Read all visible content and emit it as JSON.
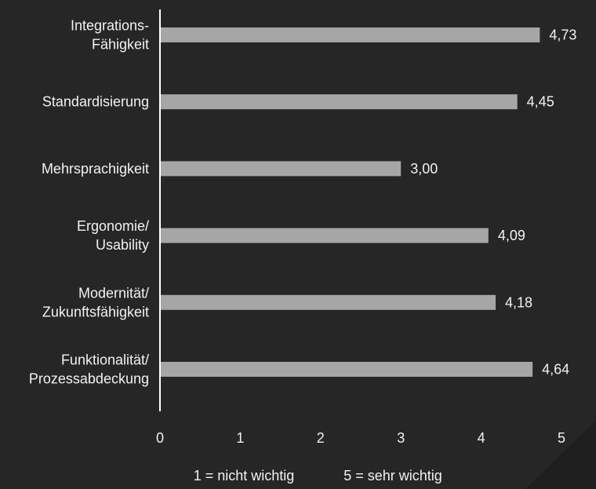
{
  "colors": {
    "background": "#262626",
    "corner_shade": "#1f1f1f",
    "bar": "#a6a6a6",
    "axis": "#ffffff",
    "text": "#f2f2f2"
  },
  "chart_data": {
    "type": "bar",
    "orientation": "horizontal",
    "categories": [
      [
        "Integrations-",
        "Fähigkeit"
      ],
      [
        "Standardisierung"
      ],
      [
        "Mehrsprachigkeit"
      ],
      [
        "Ergonomie/",
        "Usability"
      ],
      [
        "Modernität/",
        "Zukunftsfähigkeit"
      ],
      [
        "Funktionalität/",
        "Prozessabdeckung"
      ]
    ],
    "values": [
      4.73,
      4.45,
      3.0,
      4.09,
      4.18,
      4.64
    ],
    "value_labels": [
      "4,73",
      "4,45",
      "3,00",
      "4,09",
      "4,18",
      "4,64"
    ],
    "xlim": [
      0,
      5
    ],
    "xticks": [
      "0",
      "1",
      "2",
      "3",
      "4",
      "5"
    ],
    "grid": false,
    "legend": "none"
  },
  "footnote": {
    "scale_low": "1 = nicht wichtig",
    "scale_high": "5 = sehr wichtig"
  }
}
